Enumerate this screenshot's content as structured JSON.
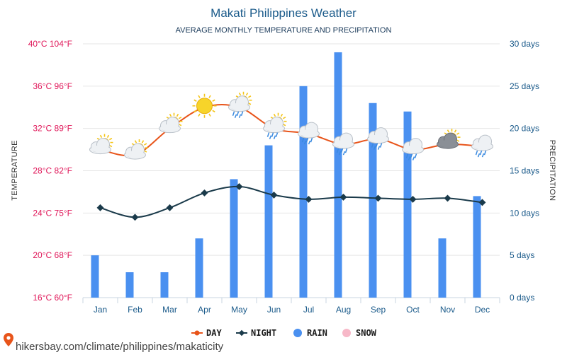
{
  "chart_data": {
    "type": "bar+line",
    "title": "Makati Philippines Weather",
    "subtitle": "AVERAGE MONTHLY TEMPERATURE AND PRECIPITATION",
    "categories": [
      "Jan",
      "Feb",
      "Mar",
      "Apr",
      "May",
      "Jun",
      "Jul",
      "Aug",
      "Sep",
      "Oct",
      "Nov",
      "Dec"
    ],
    "series": [
      {
        "name": "DAY",
        "kind": "line",
        "axis": "left",
        "color": "#e8541a",
        "values": [
          30,
          29.5,
          32,
          34,
          34,
          32,
          31.5,
          30.5,
          31,
          30,
          30.5,
          30.3
        ]
      },
      {
        "name": "NIGHT",
        "kind": "line",
        "axis": "left",
        "color": "#1a3a4a",
        "values": [
          24.5,
          23.6,
          24.5,
          25.9,
          26.5,
          25.7,
          25.3,
          25.5,
          25.4,
          25.3,
          25.4,
          25
        ]
      },
      {
        "name": "RAIN",
        "kind": "bar",
        "axis": "right",
        "color": "#4a90f0",
        "values": [
          5,
          3,
          3,
          7,
          14,
          18,
          25,
          29,
          23,
          22,
          7,
          12
        ]
      },
      {
        "name": "SNOW",
        "kind": "bar",
        "axis": "right",
        "color": "#f7b8c8",
        "values": [
          0,
          0,
          0,
          0,
          0,
          0,
          0,
          0,
          0,
          0,
          0,
          0
        ]
      }
    ],
    "weather_icons": [
      "sun-cloud",
      "sun-cloud",
      "sun-cloud",
      "sun",
      "sun-rain-cloud",
      "sun-rain-cloud",
      "rain-cloud",
      "rain-cloud",
      "rain-cloud",
      "rain-cloud",
      "sun-cloud-dark",
      "rain-cloud"
    ],
    "y_left": {
      "label": "TEMPERATURE",
      "range": [
        16,
        40
      ],
      "ticks": [
        "16°C 60°F",
        "20°C 68°F",
        "24°C 75°F",
        "28°C 82°F",
        "32°C 89°F",
        "36°C 96°F",
        "40°C 104°F"
      ]
    },
    "y_right": {
      "label": "PRECIPITATION",
      "range": [
        0,
        30
      ],
      "ticks": [
        "0 days",
        "5 days",
        "10 days",
        "15 days",
        "20 days",
        "25 days",
        "30 days"
      ]
    },
    "grid": true,
    "legend_position": "bottom-center",
    "watermark": "hikersbay.com/climate/philippines/makaticity"
  }
}
